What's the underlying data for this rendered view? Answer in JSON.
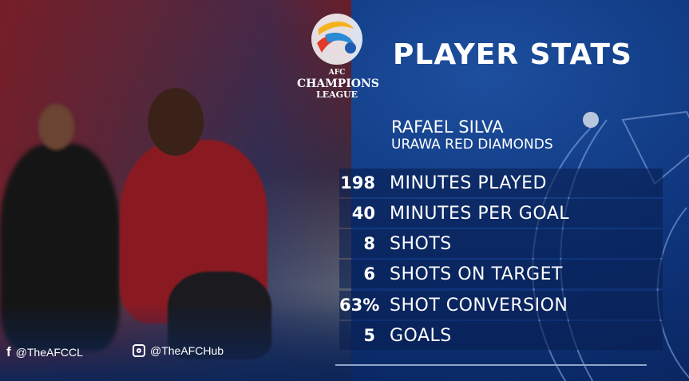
{
  "logo": {
    "line1": "AFC",
    "line2": "CHAMPIONS",
    "line3": "LEAGUE"
  },
  "title": "PLAYER STATS",
  "player": {
    "name": "RAFAEL SILVA",
    "club": "URAWA RED DIAMONDS"
  },
  "stats": [
    {
      "value": "198",
      "label": "MINUTES PLAYED"
    },
    {
      "value": "40",
      "label": "MINUTES PER GOAL"
    },
    {
      "value": "8",
      "label": "SHOTS"
    },
    {
      "value": "6",
      "label": "SHOTS ON TARGET"
    },
    {
      "value": "63%",
      "label": "SHOT CONVERSION"
    },
    {
      "value": "5",
      "label": "GOALS"
    }
  ],
  "social": [
    {
      "icon": "facebook-icon",
      "handle": "@TheAFCCL"
    },
    {
      "icon": "instagram-icon",
      "handle": "@TheAFCHub"
    }
  ],
  "colors": {
    "background": "#0f377f",
    "text": "#ffffff"
  }
}
